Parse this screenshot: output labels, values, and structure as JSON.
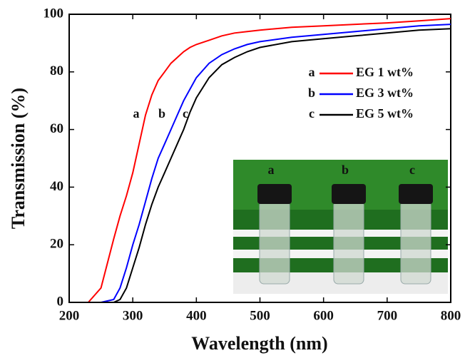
{
  "chart_data": {
    "type": "line",
    "x_label": "Wavelength (nm)",
    "y_label": "Transmission (%)",
    "xlim": [
      200,
      800
    ],
    "xticks": [
      200,
      300,
      400,
      500,
      600,
      700,
      800
    ],
    "ylim": [
      0,
      100
    ],
    "yticks": [
      0,
      20,
      40,
      60,
      80,
      100
    ],
    "x": [
      200,
      230,
      250,
      270,
      280,
      290,
      300,
      310,
      320,
      330,
      340,
      350,
      360,
      370,
      380,
      390,
      400,
      420,
      440,
      460,
      480,
      500,
      550,
      600,
      650,
      700,
      750,
      800
    ],
    "series": [
      {
        "name": "EG 1 wt%",
        "label": "a",
        "color": "#ff0000",
        "values": [
          0,
          0,
          5,
          22,
          30,
          37,
          45,
          55,
          65,
          72,
          77,
          80,
          83,
          85,
          87,
          88.5,
          89.5,
          91,
          92.5,
          93.5,
          94,
          94.5,
          95.5,
          96,
          96.5,
          97,
          97.7,
          98.5
        ]
      },
      {
        "name": "EG 3 wt%",
        "label": "b",
        "color": "#0000ff",
        "values": [
          0,
          0,
          0,
          1,
          5,
          12,
          20,
          27,
          35,
          43,
          50,
          55,
          60,
          65,
          70,
          74,
          78,
          83,
          86,
          88,
          89.5,
          90.5,
          92,
          93,
          94,
          95,
          96,
          96.5
        ]
      },
      {
        "name": "EG 5 wt%",
        "label": "c",
        "color": "#000000",
        "values": [
          0,
          0,
          0,
          0,
          1,
          5,
          12,
          19,
          27,
          34,
          40,
          45,
          50,
          55,
          60,
          66,
          71,
          78,
          82.5,
          85,
          87,
          88.5,
          90.5,
          91.5,
          92.5,
          93.5,
          94.5,
          95
        ]
      }
    ],
    "inset_labels": [
      "a",
      "b",
      "c"
    ]
  }
}
